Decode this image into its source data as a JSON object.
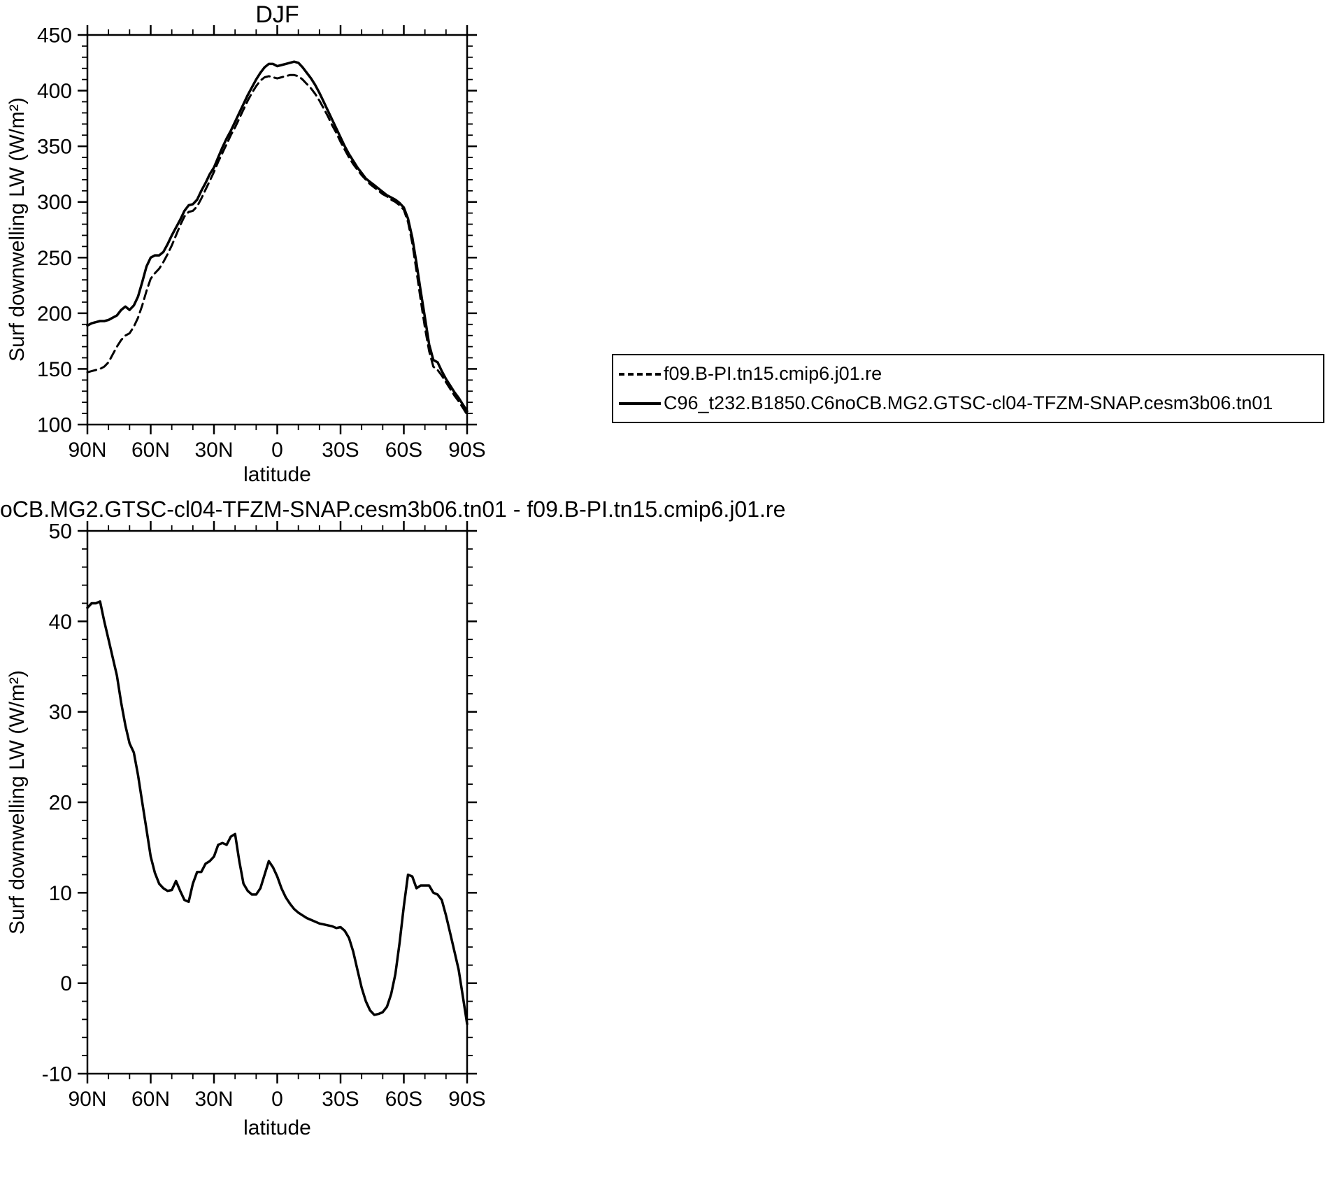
{
  "colors": {
    "ink": "#000000",
    "background": "#ffffff"
  },
  "chart_data": [
    {
      "type": "line",
      "title": "DJF",
      "xlabel": "latitude",
      "ylabel": "Surf downwelling LW (W/m²)",
      "xlim": [
        90,
        -90
      ],
      "ylim": [
        100,
        450
      ],
      "grid": false,
      "legend_position": "right-of-plot",
      "xticks": {
        "values": [
          90,
          60,
          30,
          0,
          -30,
          -60,
          -90
        ],
        "labels": [
          "90N",
          "60N",
          "30N",
          "0",
          "30S",
          "60S",
          "90S"
        ],
        "minor_step": 10
      },
      "yticks": {
        "values": [
          100,
          150,
          200,
          250,
          300,
          350,
          400,
          450
        ],
        "labels": [
          "100",
          "150",
          "200",
          "250",
          "300",
          "350",
          "400",
          "450"
        ],
        "minor_step": 10
      },
      "x": [
        90,
        88,
        86,
        84,
        82,
        80,
        78,
        76,
        74,
        72,
        70,
        68,
        66,
        64,
        62,
        60,
        58,
        56,
        54,
        52,
        50,
        48,
        46,
        44,
        42,
        40,
        38,
        36,
        34,
        32,
        30,
        28,
        26,
        24,
        22,
        20,
        18,
        16,
        14,
        12,
        10,
        8,
        6,
        4,
        2,
        0,
        -2,
        -4,
        -6,
        -8,
        -10,
        -12,
        -14,
        -16,
        -18,
        -20,
        -22,
        -24,
        -26,
        -28,
        -30,
        -32,
        -34,
        -36,
        -38,
        -40,
        -42,
        -44,
        -46,
        -48,
        -50,
        -52,
        -54,
        -56,
        -58,
        -60,
        -62,
        -64,
        -66,
        -68,
        -70,
        -72,
        -74,
        -76,
        -78,
        -80,
        -82,
        -84,
        -86,
        -88,
        -90
      ],
      "series": [
        {
          "name": "f09.B-PI.tn15.cmip6.j01.re",
          "style": "dashed",
          "y": [
            147,
            148,
            149,
            150,
            152,
            156,
            163,
            170,
            176,
            180,
            182,
            188,
            196,
            207,
            220,
            231,
            236,
            240,
            246,
            253,
            261,
            270,
            279,
            287,
            291,
            292,
            296,
            303,
            311,
            319,
            327,
            336,
            344,
            352,
            360,
            367,
            375,
            383,
            391,
            398,
            404,
            409,
            412,
            413,
            412,
            411,
            412,
            413,
            414,
            414,
            413,
            410,
            406,
            402,
            397,
            391,
            384,
            377,
            369,
            362,
            354,
            347,
            340,
            334,
            329,
            324,
            320,
            316,
            313,
            310,
            307,
            305,
            302,
            300,
            297,
            293,
            282,
            263,
            238,
            212,
            187,
            166,
            152,
            149,
            144,
            138,
            132,
            126,
            121,
            115,
            109
          ]
        },
        {
          "name": "C96_t232.B1850.C6noCB.MG2.GTSC-cl04-TFZM-SNAP.cesm3b06.tn01",
          "style": "solid",
          "y": [
            189,
            191,
            192,
            193,
            193,
            194,
            196,
            198,
            203,
            206,
            203,
            207,
            215,
            228,
            242,
            250,
            252,
            252,
            255,
            262,
            270,
            277,
            284,
            292,
            297,
            298,
            302,
            310,
            317,
            325,
            331,
            340,
            349,
            357,
            364,
            372,
            380,
            388,
            396,
            403,
            410,
            416,
            421,
            424,
            424,
            422,
            423,
            424,
            425,
            426,
            425,
            421,
            416,
            411,
            405,
            398,
            390,
            382,
            374,
            366,
            358,
            350,
            343,
            337,
            331,
            326,
            321,
            318,
            315,
            312,
            309,
            306,
            304,
            302,
            299,
            295,
            285,
            268,
            245,
            220,
            196,
            172,
            158,
            156,
            148,
            141,
            135,
            129,
            124,
            118,
            112
          ]
        }
      ]
    },
    {
      "type": "line",
      "title": "oCB.MG2.GTSC-cl04-TFZM-SNAP.cesm3b06.tn01 - f09.B-PI.tn15.cmip6.j01.re",
      "xlabel": "latitude",
      "ylabel": "Surf downwelling LW (W/m²)",
      "xlim": [
        90,
        -90
      ],
      "ylim": [
        -10,
        50
      ],
      "grid": false,
      "xticks": {
        "values": [
          90,
          60,
          30,
          0,
          -30,
          -60,
          -90
        ],
        "labels": [
          "90N",
          "60N",
          "30N",
          "0",
          "30S",
          "60S",
          "90S"
        ],
        "minor_step": 10
      },
      "yticks": {
        "values": [
          -10,
          0,
          10,
          20,
          30,
          40,
          50
        ],
        "labels": [
          "-10",
          "0",
          "10",
          "20",
          "30",
          "40",
          "50"
        ],
        "minor_step": 2
      },
      "x": [
        90,
        88,
        86,
        84,
        82,
        80,
        78,
        76,
        74,
        72,
        70,
        68,
        66,
        64,
        62,
        60,
        58,
        56,
        54,
        52,
        50,
        48,
        46,
        44,
        42,
        40,
        38,
        36,
        34,
        32,
        30,
        28,
        26,
        24,
        22,
        20,
        18,
        16,
        14,
        12,
        10,
        8,
        6,
        4,
        2,
        0,
        -2,
        -4,
        -6,
        -8,
        -10,
        -12,
        -14,
        -16,
        -18,
        -20,
        -22,
        -24,
        -26,
        -28,
        -30,
        -32,
        -34,
        -36,
        -38,
        -40,
        -42,
        -44,
        -46,
        -48,
        -50,
        -52,
        -54,
        -56,
        -58,
        -60,
        -62,
        -64,
        -66,
        -68,
        -70,
        -72,
        -74,
        -76,
        -78,
        -80,
        -82,
        -84,
        -86,
        -88,
        -90
      ],
      "series": [
        {
          "style": "solid",
          "y": [
            41.5,
            42,
            42,
            42.2,
            40,
            38,
            36,
            34,
            31,
            28.5,
            26.5,
            25.5,
            23,
            20,
            17,
            14,
            12.2,
            11,
            10.5,
            10.2,
            10.3,
            11.3,
            10.2,
            9.2,
            9.0,
            11.0,
            12.3,
            12.3,
            13.2,
            13.5,
            14.0,
            15.3,
            15.5,
            15.3,
            16.2,
            16.5,
            13.5,
            11.0,
            10.2,
            9.8,
            9.8,
            10.5,
            12.0,
            13.5,
            12.8,
            11.8,
            10.5,
            9.5,
            8.8,
            8.2,
            7.8,
            7.5,
            7.2,
            7.0,
            6.8,
            6.6,
            6.5,
            6.4,
            6.3,
            6.1,
            6.2,
            5.8,
            5.0,
            3.5,
            1.5,
            -0.5,
            -2.0,
            -3.0,
            -3.5,
            -3.4,
            -3.2,
            -2.6,
            -1.2,
            1.0,
            4.5,
            8.5,
            12.0,
            11.8,
            10.5,
            10.8,
            10.8,
            10.8,
            10.0,
            9.8,
            9.2,
            7.5,
            5.5,
            3.5,
            1.5,
            -1.5,
            -4.5
          ]
        }
      ]
    }
  ]
}
